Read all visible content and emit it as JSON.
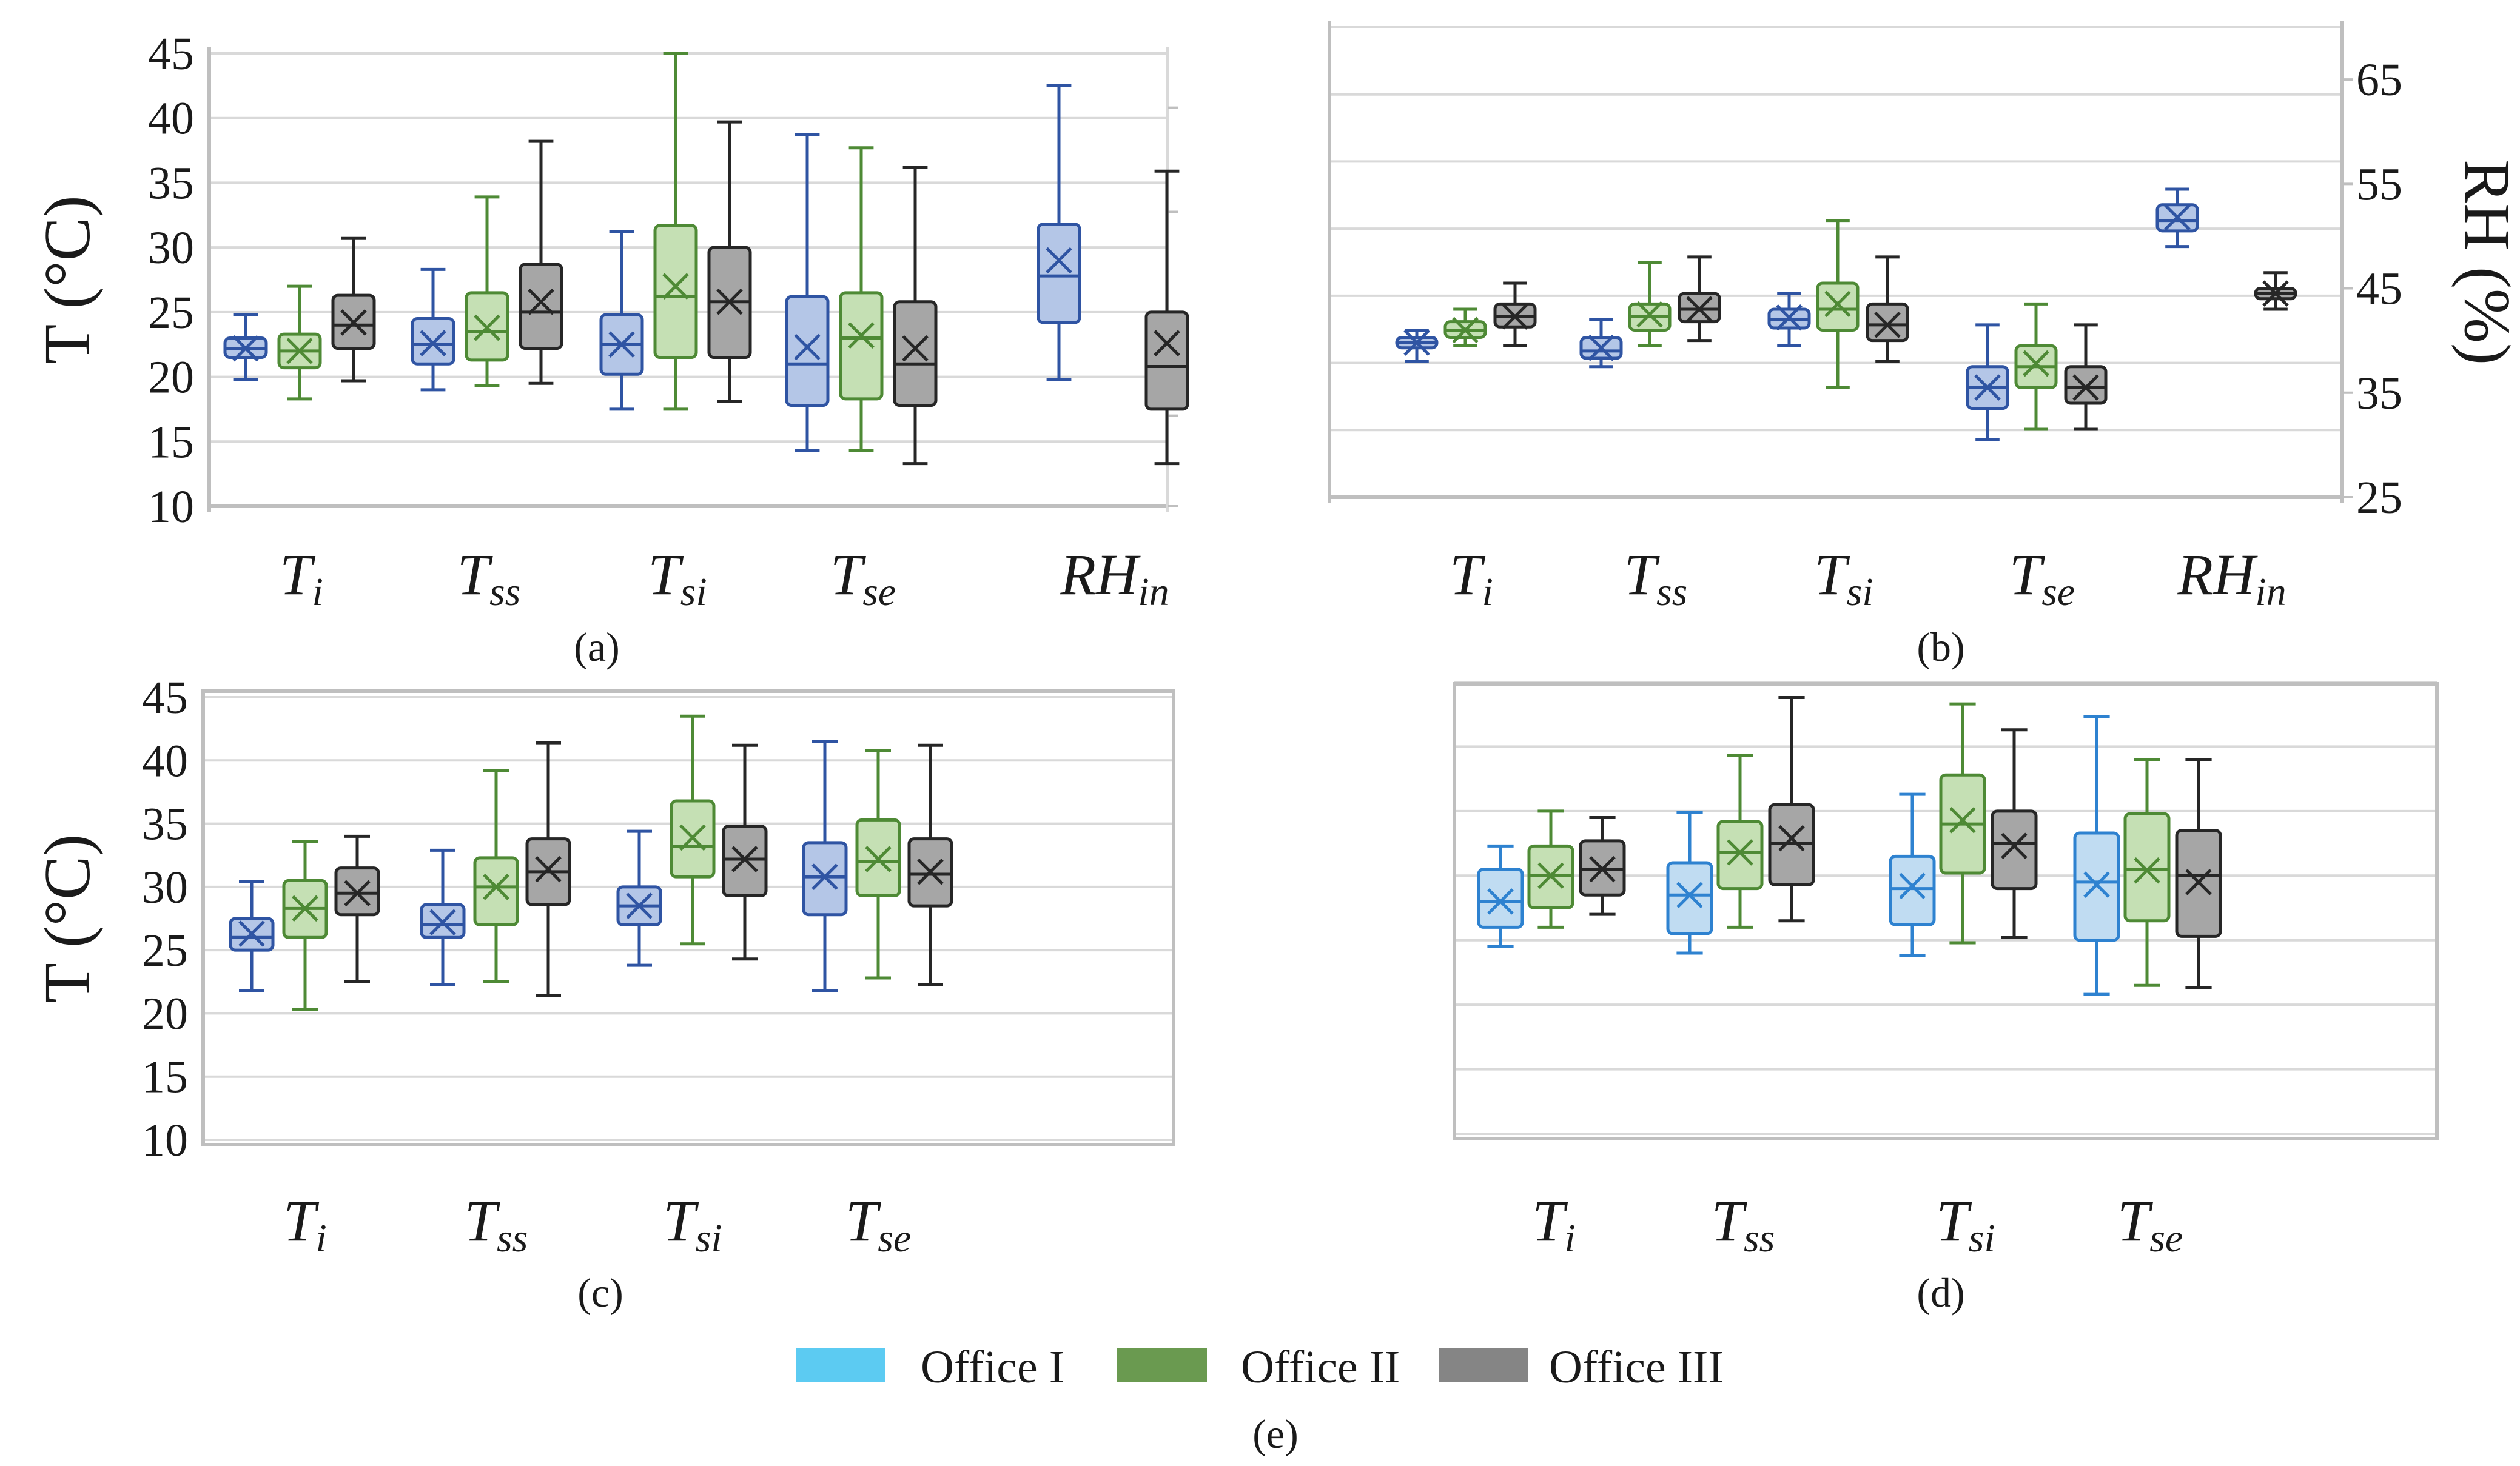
{
  "chart_data": [
    {
      "panel": "a",
      "type": "box",
      "label": "(a)",
      "ylabel": "T (°C)",
      "ylim": [
        10,
        45
      ],
      "yticks": [
        10,
        15,
        20,
        25,
        30,
        35,
        40,
        45
      ],
      "categories": [
        {
          "base": "T",
          "sub": "i"
        },
        {
          "base": "T",
          "sub": "ss"
        },
        {
          "base": "T",
          "sub": "si"
        },
        {
          "base": "T",
          "sub": "se"
        },
        {
          "base": "RH",
          "sub": "in"
        }
      ],
      "series": [
        {
          "name": "Office I",
          "boxes": [
            {
              "cat": 0,
              "min": 19.8,
              "q1": 21.5,
              "median": 22.2,
              "q3": 23.0,
              "max": 24.8,
              "mean": 22.2
            },
            {
              "cat": 1,
              "min": 19.0,
              "q1": 21.0,
              "median": 22.5,
              "q3": 24.5,
              "max": 28.3,
              "mean": 22.6
            },
            {
              "cat": 2,
              "min": 17.5,
              "q1": 20.2,
              "median": 22.5,
              "q3": 24.8,
              "max": 31.2,
              "mean": 22.5
            },
            {
              "cat": 3,
              "min": 14.3,
              "q1": 17.8,
              "median": 21.0,
              "q3": 26.2,
              "max": 38.7,
              "mean": 22.3
            },
            {
              "cat": 4,
              "min": 19.8,
              "q1": 24.2,
              "median": 27.8,
              "q3": 31.8,
              "max": 42.5,
              "mean": 29.0
            }
          ]
        },
        {
          "name": "Office II",
          "boxes": [
            {
              "cat": 0,
              "min": 18.3,
              "q1": 20.7,
              "median": 22.0,
              "q3": 23.3,
              "max": 27.0,
              "mean": 22.0
            },
            {
              "cat": 1,
              "min": 19.3,
              "q1": 21.3,
              "median": 23.5,
              "q3": 26.5,
              "max": 33.9,
              "mean": 23.8
            },
            {
              "cat": 2,
              "min": 17.5,
              "q1": 21.5,
              "median": 26.2,
              "q3": 31.7,
              "max": 45.0,
              "mean": 27.0
            },
            {
              "cat": 3,
              "min": 14.3,
              "q1": 18.3,
              "median": 23.0,
              "q3": 26.5,
              "max": 37.7,
              "mean": 23.2
            }
          ]
        },
        {
          "name": "Office III",
          "boxes": [
            {
              "cat": 0,
              "min": 19.7,
              "q1": 22.2,
              "median": 24.0,
              "q3": 26.3,
              "max": 30.7,
              "mean": 24.2
            },
            {
              "cat": 1,
              "min": 19.5,
              "q1": 22.2,
              "median": 25.0,
              "q3": 28.7,
              "max": 38.2,
              "mean": 25.8
            },
            {
              "cat": 2,
              "min": 18.1,
              "q1": 21.5,
              "median": 25.8,
              "q3": 30.0,
              "max": 39.7,
              "mean": 25.8
            },
            {
              "cat": 3,
              "min": 13.3,
              "q1": 17.8,
              "median": 21.0,
              "q3": 25.8,
              "max": 36.2,
              "mean": 22.2
            },
            {
              "cat": 4,
              "min": 13.3,
              "q1": 17.5,
              "median": 20.8,
              "q3": 25.0,
              "max": 35.9,
              "mean": 22.6
            }
          ]
        }
      ]
    },
    {
      "panel": "b",
      "type": "box",
      "label": "(b)",
      "ylabel": "RH (%)",
      "ylabel_side": "right",
      "ylim": [
        25,
        70
      ],
      "yticks": [
        25,
        35,
        45,
        55,
        65
      ],
      "categories": [
        {
          "base": "T",
          "sub": "i"
        },
        {
          "base": "T",
          "sub": "ss"
        },
        {
          "base": "T",
          "sub": "si"
        },
        {
          "base": "T",
          "sub": "se"
        },
        {
          "base": "RH",
          "sub": "in"
        }
      ],
      "series": [
        {
          "name": "Office I",
          "boxes": [
            {
              "cat": 0,
              "min": 38.0,
              "q1": 39.3,
              "median": 39.8,
              "q3": 40.3,
              "max": 41.0,
              "mean": 39.8
            },
            {
              "cat": 1,
              "min": 37.5,
              "q1": 38.3,
              "median": 39.0,
              "q3": 40.3,
              "max": 42.0,
              "mean": 39.3
            },
            {
              "cat": 2,
              "min": 39.5,
              "q1": 41.2,
              "median": 42.0,
              "q3": 43.0,
              "max": 44.5,
              "mean": 42.2
            },
            {
              "cat": 3,
              "min": 30.5,
              "q1": 33.5,
              "median": 35.5,
              "q3": 37.5,
              "max": 41.5,
              "mean": 35.5
            },
            {
              "cat": 4,
              "min": 49.0,
              "q1": 50.5,
              "median": 51.5,
              "q3": 53.0,
              "max": 54.5,
              "mean": 51.8
            }
          ]
        },
        {
          "name": "Office II",
          "boxes": [
            {
              "cat": 0,
              "min": 39.5,
              "q1": 40.3,
              "median": 41.0,
              "q3": 41.8,
              "max": 43.0,
              "mean": 41.0
            },
            {
              "cat": 1,
              "min": 39.5,
              "q1": 41.0,
              "median": 42.3,
              "q3": 43.5,
              "max": 47.5,
              "mean": 42.5
            },
            {
              "cat": 2,
              "min": 35.5,
              "q1": 41.0,
              "median": 43.0,
              "q3": 45.5,
              "max": 51.5,
              "mean": 43.5
            },
            {
              "cat": 3,
              "min": 31.5,
              "q1": 35.5,
              "median": 37.5,
              "q3": 39.5,
              "max": 43.5,
              "mean": 37.8
            }
          ]
        },
        {
          "name": "Office III",
          "boxes": [
            {
              "cat": 0,
              "min": 39.5,
              "q1": 41.3,
              "median": 42.3,
              "q3": 43.5,
              "max": 45.5,
              "mean": 42.3
            },
            {
              "cat": 1,
              "min": 40.0,
              "q1": 41.8,
              "median": 43.0,
              "q3": 44.5,
              "max": 48.0,
              "mean": 43.0
            },
            {
              "cat": 2,
              "min": 38.0,
              "q1": 40.0,
              "median": 41.5,
              "q3": 43.5,
              "max": 48.0,
              "mean": 41.5
            },
            {
              "cat": 3,
              "min": 31.5,
              "q1": 34.0,
              "median": 35.5,
              "q3": 37.5,
              "max": 41.5,
              "mean": 35.5
            },
            {
              "cat": 4,
              "min": 43.0,
              "q1": 44.0,
              "median": 44.5,
              "q3": 45.0,
              "max": 46.5,
              "mean": 44.5
            }
          ]
        }
      ]
    },
    {
      "panel": "c",
      "type": "box",
      "label": "(c)",
      "ylabel": "T (°C)",
      "ylim": [
        10,
        45
      ],
      "yticks": [
        10,
        15,
        20,
        25,
        30,
        35,
        40,
        45
      ],
      "categories": [
        {
          "base": "T",
          "sub": "i"
        },
        {
          "base": "T",
          "sub": "ss"
        },
        {
          "base": "T",
          "sub": "si"
        },
        {
          "base": "T",
          "sub": "se"
        }
      ],
      "series": [
        {
          "name": "Office I",
          "boxes": [
            {
              "cat": 0,
              "min": 21.8,
              "q1": 25.0,
              "median": 26.0,
              "q3": 27.5,
              "max": 30.4,
              "mean": 26.3
            },
            {
              "cat": 1,
              "min": 22.3,
              "q1": 26.0,
              "median": 27.0,
              "q3": 28.6,
              "max": 32.9,
              "mean": 27.2
            },
            {
              "cat": 2,
              "min": 23.8,
              "q1": 27.0,
              "median": 28.5,
              "q3": 30.0,
              "max": 34.4,
              "mean": 28.5
            },
            {
              "cat": 3,
              "min": 21.8,
              "q1": 27.8,
              "median": 30.8,
              "q3": 33.5,
              "max": 41.5,
              "mean": 30.8
            }
          ]
        },
        {
          "name": "Office II",
          "boxes": [
            {
              "cat": 0,
              "min": 20.3,
              "q1": 26.0,
              "median": 28.3,
              "q3": 30.5,
              "max": 33.6,
              "mean": 28.3
            },
            {
              "cat": 1,
              "min": 22.5,
              "q1": 27.0,
              "median": 30.0,
              "q3": 32.3,
              "max": 39.2,
              "mean": 30.0
            },
            {
              "cat": 2,
              "min": 25.5,
              "q1": 30.8,
              "median": 33.2,
              "q3": 36.8,
              "max": 43.5,
              "mean": 33.9
            },
            {
              "cat": 3,
              "min": 22.8,
              "q1": 29.3,
              "median": 32.0,
              "q3": 35.3,
              "max": 40.8,
              "mean": 32.2
            }
          ]
        },
        {
          "name": "Office III",
          "boxes": [
            {
              "cat": 0,
              "min": 22.5,
              "q1": 27.8,
              "median": 29.5,
              "q3": 31.5,
              "max": 34.0,
              "mean": 29.5
            },
            {
              "cat": 1,
              "min": 21.4,
              "q1": 28.6,
              "median": 31.2,
              "q3": 33.8,
              "max": 41.4,
              "mean": 31.4
            },
            {
              "cat": 2,
              "min": 24.3,
              "q1": 29.3,
              "median": 32.2,
              "q3": 34.8,
              "max": 41.2,
              "mean": 32.2
            },
            {
              "cat": 3,
              "min": 22.3,
              "q1": 28.5,
              "median": 31.0,
              "q3": 33.8,
              "max": 41.2,
              "mean": 31.2
            }
          ]
        }
      ]
    },
    {
      "panel": "d",
      "type": "box",
      "label": "(d)",
      "ylabel": "",
      "ylim": [
        10,
        45
      ],
      "yticks": [],
      "categories": [
        {
          "base": "T",
          "sub": "i"
        },
        {
          "base": "T",
          "sub": "ss"
        },
        {
          "base": "T",
          "sub": "si"
        },
        {
          "base": "T",
          "sub": "se"
        }
      ],
      "series": [
        {
          "name": "Office I",
          "boxes": [
            {
              "cat": 0,
              "min": 24.5,
              "q1": 26.0,
              "median": 28.0,
              "q3": 30.5,
              "max": 32.3,
              "mean": 28.0
            },
            {
              "cat": 1,
              "min": 24.0,
              "q1": 25.5,
              "median": 28.5,
              "q3": 31.0,
              "max": 34.9,
              "mean": 28.5
            },
            {
              "cat": 2,
              "min": 23.8,
              "q1": 26.2,
              "median": 29.0,
              "q3": 31.5,
              "max": 36.3,
              "mean": 29.2
            },
            {
              "cat": 3,
              "min": 20.8,
              "q1": 25.0,
              "median": 29.5,
              "q3": 33.3,
              "max": 42.3,
              "mean": 29.3
            }
          ]
        },
        {
          "name": "Office II",
          "boxes": [
            {
              "cat": 0,
              "min": 26.0,
              "q1": 27.5,
              "median": 30.0,
              "q3": 32.3,
              "max": 35.0,
              "mean": 30.0
            },
            {
              "cat": 1,
              "min": 26.0,
              "q1": 29.0,
              "median": 31.8,
              "q3": 34.2,
              "max": 39.3,
              "mean": 31.8
            },
            {
              "cat": 2,
              "min": 24.8,
              "q1": 30.2,
              "median": 34.0,
              "q3": 37.8,
              "max": 43.3,
              "mean": 34.3
            },
            {
              "cat": 3,
              "min": 21.5,
              "q1": 26.5,
              "median": 30.5,
              "q3": 34.8,
              "max": 39.0,
              "mean": 30.4
            }
          ]
        },
        {
          "name": "Office III",
          "boxes": [
            {
              "cat": 0,
              "min": 27.0,
              "q1": 28.5,
              "median": 30.5,
              "q3": 32.7,
              "max": 34.5,
              "mean": 30.5
            },
            {
              "cat": 1,
              "min": 26.5,
              "q1": 29.3,
              "median": 32.5,
              "q3": 35.5,
              "max": 43.8,
              "mean": 32.9
            },
            {
              "cat": 2,
              "min": 25.2,
              "q1": 29.0,
              "median": 32.5,
              "q3": 35.0,
              "max": 41.3,
              "mean": 32.3
            },
            {
              "cat": 3,
              "min": 21.3,
              "q1": 25.3,
              "median": 30.0,
              "q3": 33.5,
              "max": 39.0,
              "mean": 29.5
            }
          ]
        }
      ]
    }
  ],
  "legend": {
    "label": "(e)",
    "items": [
      {
        "name": "Office I",
        "color": "#5ccbf2"
      },
      {
        "name": "Office II",
        "color": "#6a9a50"
      },
      {
        "name": "Office III",
        "color": "#858585"
      }
    ]
  },
  "colors": {
    "office_1_fill": "#b4c6e7",
    "office_1_stroke": "#2f54a3",
    "office_1_light_fill": "#c0dcf2",
    "office_1_light_stroke": "#2e82d0",
    "office_2_fill": "#c5e0b4",
    "office_2_stroke": "#4e8a35",
    "office_3_fill": "#a6a6a6",
    "office_3_stroke": "#262626",
    "grid": "#d9d9d9",
    "frame": "#bfbfbf"
  }
}
